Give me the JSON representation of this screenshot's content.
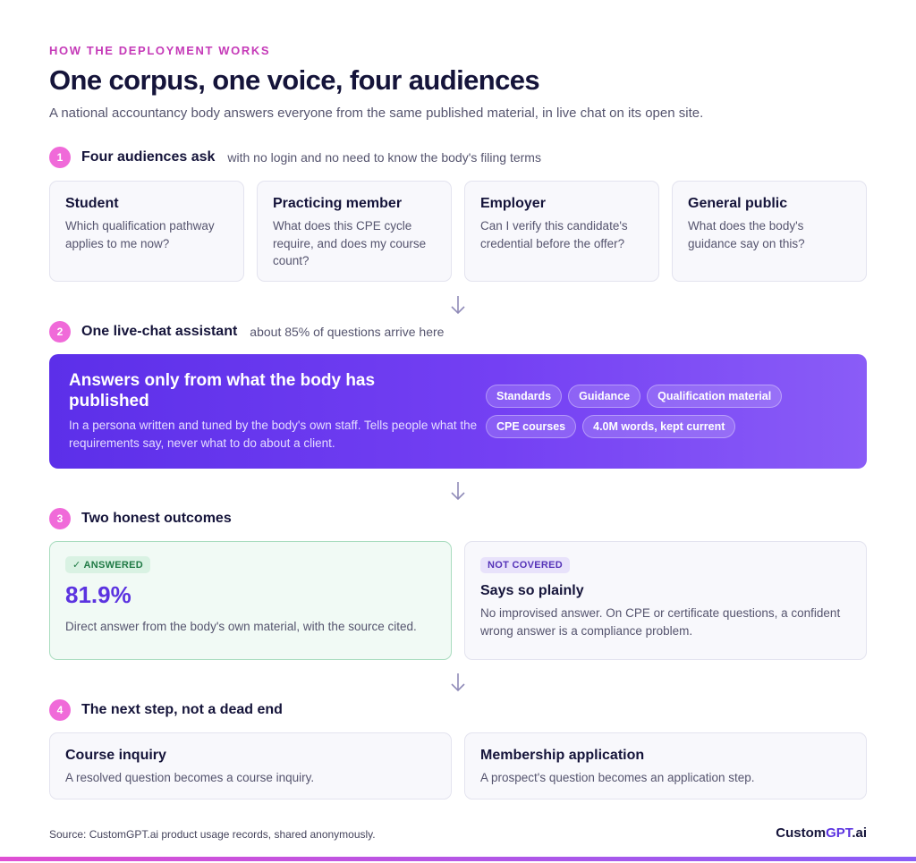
{
  "header": {
    "eyebrow": "HOW THE DEPLOYMENT WORKS",
    "title": "One corpus, one voice, four audiences",
    "subtitle": "A national accountancy body answers everyone from the same published material, in live chat on its open site."
  },
  "steps": [
    {
      "num": "1",
      "title": "Four audiences ask",
      "note": "with no login and no need to know the body's filing terms"
    },
    {
      "num": "2",
      "title": "One live-chat assistant",
      "note": "about 85% of questions arrive here"
    },
    {
      "num": "3",
      "title": "Two honest outcomes",
      "note": ""
    },
    {
      "num": "4",
      "title": "The next step, not a dead end",
      "note": ""
    }
  ],
  "audiences": [
    {
      "title": "Student",
      "text": "Which qualification pathway applies to me now?"
    },
    {
      "title": "Practicing member",
      "text": "What does this CPE cycle require, and does my course count?"
    },
    {
      "title": "Employer",
      "text": "Can I verify this candidate's credential before the offer?"
    },
    {
      "title": "General public",
      "text": "What does the body's guidance say on this?"
    }
  ],
  "assistant": {
    "title": "Answers only from what the body has published",
    "text": "In a persona written and tuned by the body's own staff. Tells people what the requirements say, never what to do about a client.",
    "chips": [
      "Standards",
      "Guidance",
      "Qualification material",
      "CPE courses",
      "4.0M words, kept current"
    ]
  },
  "outcomes": {
    "answered": {
      "badge": "✓ ANSWERED",
      "value": "81.9%",
      "text": "Direct answer from the body's own material, with the source cited."
    },
    "not_covered": {
      "badge": "NOT COVERED",
      "title": "Says so plainly",
      "text": "No improvised answer. On CPE or certificate questions, a confident wrong answer is a compliance problem."
    }
  },
  "next_steps": [
    {
      "title": "Course inquiry",
      "text": "A resolved question becomes a course inquiry."
    },
    {
      "title": "Membership application",
      "text": "A prospect's question becomes an application step."
    }
  ],
  "footer": {
    "source": "Source: CustomGPT.ai product usage records, shared anonymously.",
    "logo_main": "Custom",
    "logo_accent": "GPT",
    "logo_suffix": ".ai"
  },
  "colors": {
    "accent_pink": "#f06ad9",
    "accent_purple": "#5b33e0",
    "answered_green": "#1f7a45"
  }
}
